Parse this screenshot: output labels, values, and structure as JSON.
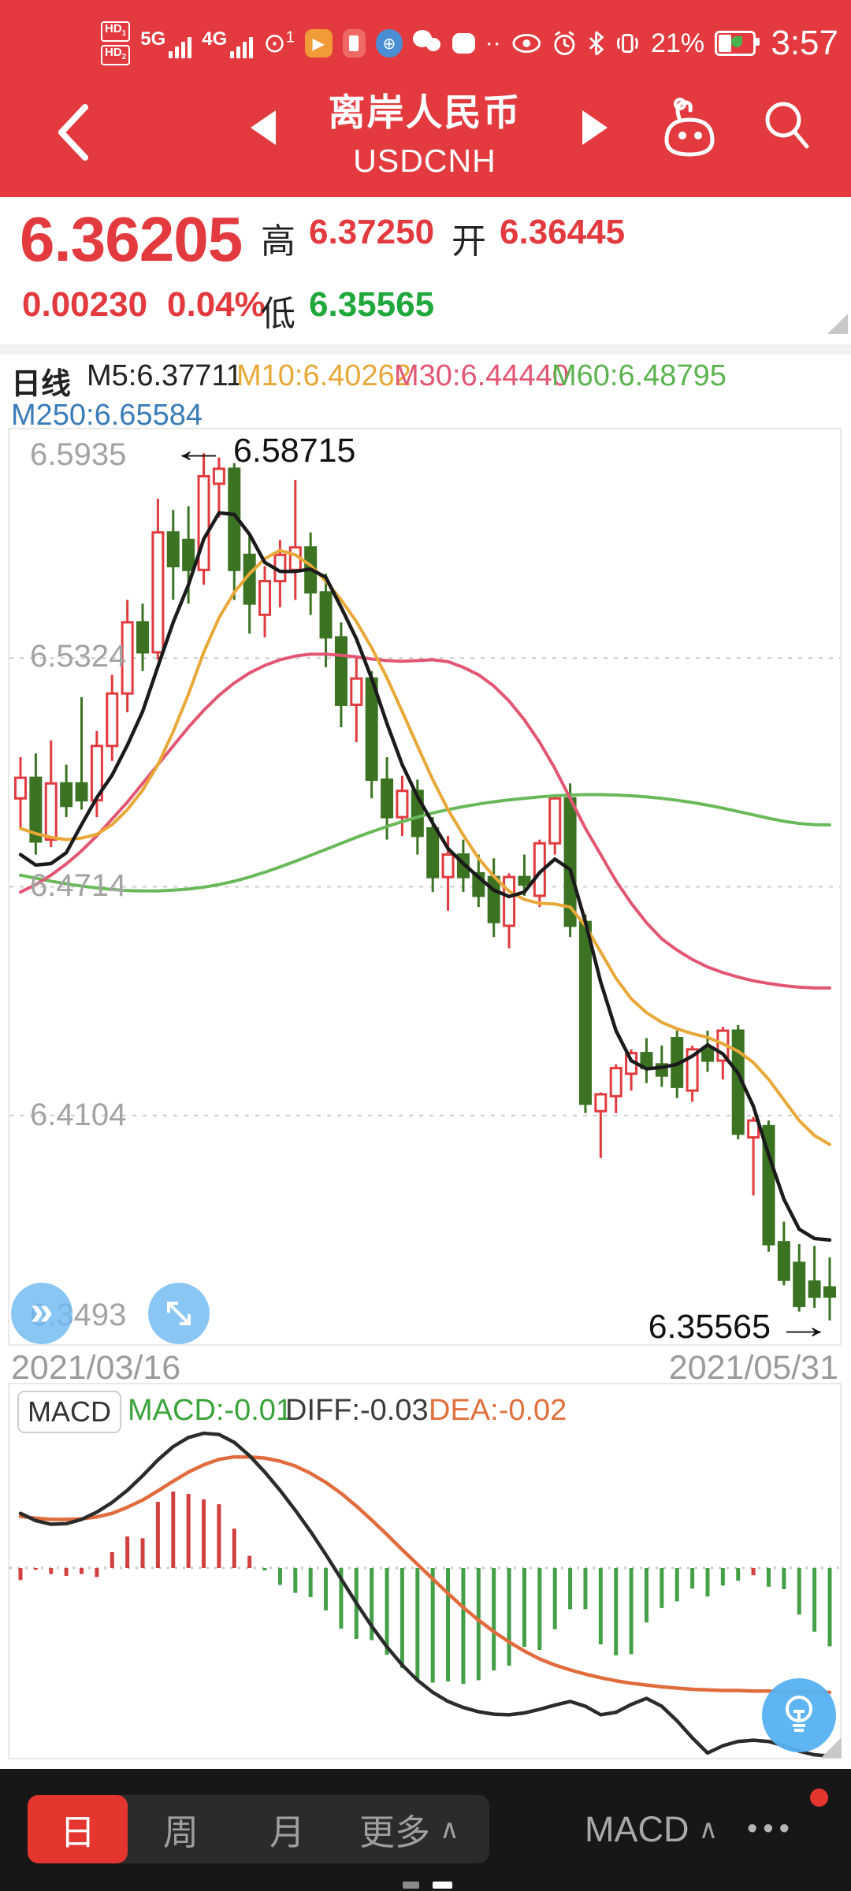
{
  "status_bar": {
    "hd": "HD",
    "hd1_num": "1",
    "hd2_num": "2",
    "sig1": "5G",
    "sig2": "4G",
    "hotspot_count": "1",
    "dots": "··",
    "battery_pct": "21%",
    "time": "3:57",
    "play_glyph": "▶",
    "globe_glyph": "⊕"
  },
  "header": {
    "title": "离岸人民币",
    "subtitle": "USDCNH"
  },
  "quote": {
    "last": "6.36205",
    "change": "0.00230",
    "change_pct": "0.04%",
    "high_label": "高",
    "high": "6.37250",
    "open_label": "开",
    "open": "6.36445",
    "low_label": "低",
    "low": "6.35565"
  },
  "indicator_bar": {
    "period": "日线",
    "m5": "M5:6.37711",
    "m10": "M10:6.40262",
    "m30": "M30:6.44440",
    "m60": "M60:6.48795",
    "m250": "M250:6.65584"
  },
  "annotations": {
    "high_marker": "6.58715",
    "low_marker": "6.35565",
    "left_arrow": "←",
    "right_arrow": "→",
    "fast_forward": "»"
  },
  "x_axis": {
    "start": "2021/03/16",
    "end": "2021/05/31"
  },
  "macd_panel": {
    "button": "MACD",
    "macd_label": "MACD:-0.01",
    "diff_label": "DIFF:-0.03",
    "dea_label": "DEA:-0.02"
  },
  "bottom_bar": {
    "tab_day": "日",
    "tab_week": "周",
    "tab_month": "月",
    "tab_more": "更多",
    "chevron": "∧",
    "indicator_tab": "MACD",
    "more_dots": "•••"
  },
  "colors": {
    "accent_red": "#e23a3e",
    "green_text": "#21a83c",
    "up": "#e23a3e",
    "down": "#3b7323",
    "ma5": "#1b1b1b",
    "ma10": "#e8a838",
    "ma30": "#e25673",
    "ma60": "#69b95a",
    "diff": "#2b2b2b",
    "dea": "#e06c3e",
    "hist_up": "#d23f3f",
    "hist_down": "#43a047",
    "grid": "#cccccc",
    "blue_button": "#70baf1"
  },
  "chart_data": {
    "type": "candlestick",
    "title": "USDCNH daily candles with MA5/MA10/MA30/MA60 and MACD",
    "x_range": [
      "2021/03/16",
      "2021/05/31"
    ],
    "y_max": 6.5935,
    "y_min": 6.3493,
    "y_labels": [
      "6.5935",
      "6.5324",
      "6.4714",
      "6.4104",
      "6.3493"
    ],
    "candles": [
      [
        6.495,
        6.506,
        6.487,
        6.5005
      ],
      [
        6.5005,
        6.507,
        6.48,
        6.4835
      ],
      [
        6.484,
        6.5105,
        6.482,
        6.499
      ],
      [
        6.499,
        6.504,
        6.49,
        6.493
      ],
      [
        6.499,
        6.522,
        6.492,
        6.4945
      ],
      [
        6.4945,
        6.513,
        6.49,
        6.509
      ],
      [
        6.509,
        6.528,
        6.505,
        6.523
      ],
      [
        6.523,
        6.548,
        6.518,
        6.542
      ],
      [
        6.542,
        6.547,
        6.529,
        6.534
      ],
      [
        6.534,
        6.575,
        6.532,
        6.566
      ],
      [
        6.566,
        6.572,
        6.548,
        6.557
      ],
      [
        6.564,
        6.573,
        6.547,
        6.556
      ],
      [
        6.556,
        6.58715,
        6.552,
        6.581
      ],
      [
        6.579,
        6.586,
        6.57,
        6.583
      ],
      [
        6.583,
        6.5845,
        6.548,
        6.556
      ],
      [
        6.56,
        6.565,
        6.539,
        6.547
      ],
      [
        6.544,
        6.557,
        6.538,
        6.553
      ],
      [
        6.553,
        6.564,
        6.546,
        6.56
      ],
      [
        6.556,
        6.58,
        6.548,
        6.562
      ],
      [
        6.562,
        6.566,
        6.544,
        6.55
      ],
      [
        6.55,
        6.555,
        6.53,
        6.538
      ],
      [
        6.538,
        6.542,
        6.514,
        6.52
      ],
      [
        6.52,
        6.533,
        6.51,
        6.527
      ],
      [
        6.527,
        6.529,
        6.495,
        6.5
      ],
      [
        6.5,
        6.506,
        6.484,
        6.49
      ],
      [
        6.49,
        6.501,
        6.485,
        6.497
      ],
      [
        6.497,
        6.5,
        6.48,
        6.485
      ],
      [
        6.487,
        6.49,
        6.47,
        6.474
      ],
      [
        6.474,
        6.485,
        6.465,
        6.48
      ],
      [
        6.48,
        6.484,
        6.47,
        6.474
      ],
      [
        6.475,
        6.48,
        6.466,
        6.469
      ],
      [
        6.474,
        6.479,
        6.458,
        6.462
      ],
      [
        6.461,
        6.475,
        6.455,
        6.474
      ],
      [
        6.474,
        6.48,
        6.469,
        6.472
      ],
      [
        6.469,
        6.484,
        6.466,
        6.483
      ],
      [
        6.483,
        6.496,
        6.48,
        6.495
      ],
      [
        6.495,
        6.499,
        6.458,
        6.461
      ],
      [
        6.462,
        6.464,
        6.411,
        6.4135
      ],
      [
        6.4115,
        6.4165,
        6.399,
        6.416
      ],
      [
        6.4155,
        6.424,
        6.411,
        6.423
      ],
      [
        6.4215,
        6.428,
        6.417,
        6.427
      ],
      [
        6.427,
        6.431,
        6.419,
        6.423
      ],
      [
        6.424,
        6.429,
        6.418,
        6.421
      ],
      [
        6.431,
        6.433,
        6.415,
        6.418
      ],
      [
        6.417,
        6.429,
        6.414,
        6.428
      ],
      [
        6.428,
        6.433,
        6.422,
        6.425
      ],
      [
        6.425,
        6.434,
        6.42,
        6.433
      ],
      [
        6.433,
        6.4345,
        6.404,
        6.4055
      ],
      [
        6.4045,
        6.41,
        6.389,
        6.409
      ],
      [
        6.4075,
        6.409,
        6.374,
        6.376
      ],
      [
        6.3765,
        6.382,
        6.365,
        6.3665
      ],
      [
        6.371,
        6.376,
        6.358,
        6.3595
      ],
      [
        6.366,
        6.3755,
        6.359,
        6.362
      ],
      [
        6.36445,
        6.3725,
        6.35565,
        6.36205
      ]
    ],
    "ma5": [
      6.48,
      6.4772,
      6.4776,
      6.4805,
      6.488,
      6.4952,
      6.5012,
      6.5092,
      6.5182,
      6.5302,
      6.542,
      6.552,
      6.5642,
      6.5712,
      6.5708,
      6.5655,
      6.558,
      6.5556,
      6.5556,
      6.5562,
      6.554,
      6.546,
      6.5376,
      6.527,
      6.515,
      6.504,
      6.4955,
      6.4884,
      6.4816,
      6.4776,
      6.474,
      6.4705,
      6.4688,
      6.47,
      6.4752,
      6.4788,
      6.476,
      6.462,
      6.446,
      6.433,
      6.425,
      6.4228,
      6.4232,
      6.424,
      6.4262,
      6.4292,
      6.4268,
      6.4216,
      6.4128,
      6.3998,
      6.388,
      6.38,
      6.3775,
      6.37711
    ],
    "ma10": [
      6.487,
      6.4856,
      6.4846,
      6.484,
      6.4844,
      6.4854,
      6.488,
      6.492,
      6.4972,
      6.504,
      6.5128,
      6.5228,
      6.534,
      6.5432,
      6.55,
      6.555,
      6.559,
      6.5612,
      6.56,
      6.5572,
      6.553,
      6.548,
      6.5422,
      6.5352,
      6.5272,
      6.5182,
      6.509,
      6.5,
      6.492,
      6.4852,
      6.479,
      6.4742,
      6.4702,
      6.468,
      6.467,
      6.4668,
      6.466,
      6.461,
      6.454,
      6.447,
      6.4415,
      6.4378,
      6.4352,
      6.4335,
      6.4322,
      6.4312,
      6.4295,
      6.4275,
      6.4245,
      6.42,
      6.4145,
      6.409,
      6.405,
      6.40262
    ],
    "ma30": [
      6.47,
      6.472,
      6.4745,
      6.4775,
      6.481,
      6.485,
      6.4895,
      6.494,
      6.499,
      6.504,
      6.509,
      6.514,
      6.5185,
      6.5225,
      6.5258,
      6.5285,
      6.5305,
      6.532,
      6.533,
      6.5335,
      6.5335,
      6.5332,
      6.5328,
      6.5322,
      6.5318,
      6.5316,
      6.5318,
      6.532,
      6.5315,
      6.53,
      6.528,
      6.525,
      6.521,
      6.516,
      6.51,
      6.503,
      6.495,
      6.487,
      6.48,
      6.473,
      6.467,
      6.4618,
      6.4575,
      6.4545,
      6.452,
      6.45,
      6.4485,
      6.4473,
      6.4463,
      6.4456,
      6.445,
      6.4446,
      6.4444,
      6.4444
    ],
    "ma60": [
      6.4745,
      6.4737,
      6.4729,
      6.4722,
      6.4716,
      6.4711,
      6.4707,
      6.4704,
      6.4703,
      6.4703,
      6.4705,
      6.4708,
      6.4713,
      6.472,
      6.4729,
      6.474,
      6.4753,
      6.4767,
      6.4782,
      6.4798,
      6.4814,
      6.483,
      6.4846,
      6.4861,
      6.4875,
      6.4888,
      6.49,
      6.4911,
      6.492,
      6.4928,
      6.4935,
      6.4941,
      6.4946,
      6.495,
      6.4954,
      6.4957,
      6.4959,
      6.496,
      6.496,
      6.4959,
      6.4957,
      6.4954,
      6.495,
      6.4945,
      6.4939,
      6.4932,
      6.4924,
      6.4915,
      6.4906,
      6.4897,
      6.4889,
      6.4883,
      6.488,
      6.48795
    ],
    "macd": {
      "diff": [
        0.009,
        0.0078,
        0.0072,
        0.0073,
        0.008,
        0.0092,
        0.0108,
        0.0128,
        0.0152,
        0.0178,
        0.02,
        0.0215,
        0.0222,
        0.022,
        0.0207,
        0.0185,
        0.0158,
        0.0128,
        0.0095,
        0.006,
        0.0022,
        -0.0018,
        -0.0058,
        -0.0096,
        -0.013,
        -0.016,
        -0.0185,
        -0.0205,
        -0.022,
        -0.023,
        -0.0237,
        -0.0241,
        -0.0242,
        -0.0239,
        -0.0233,
        -0.0226,
        -0.022,
        -0.0228,
        -0.0242,
        -0.0238,
        -0.0225,
        -0.0215,
        -0.0228,
        -0.0252,
        -0.028,
        -0.0305,
        -0.0293,
        -0.0286,
        -0.0284,
        -0.0286,
        -0.0293,
        -0.0302,
        -0.0308,
        -0.031
      ],
      "dea": [
        0.0085,
        0.0082,
        0.008,
        0.008,
        0.0081,
        0.0084,
        0.009,
        0.01,
        0.0112,
        0.0127,
        0.0143,
        0.0158,
        0.017,
        0.0179,
        0.0183,
        0.0183,
        0.0181,
        0.0176,
        0.0168,
        0.0156,
        0.0141,
        0.0123,
        0.0102,
        0.0079,
        0.0055,
        0.003,
        0.0006,
        -0.0018,
        -0.0042,
        -0.0065,
        -0.0086,
        -0.0105,
        -0.0122,
        -0.0137,
        -0.015,
        -0.016,
        -0.0168,
        -0.0175,
        -0.0181,
        -0.0186,
        -0.019,
        -0.0193,
        -0.0196,
        -0.0198,
        -0.02,
        -0.0201,
        -0.0202,
        -0.0202,
        -0.0203,
        -0.0203,
        -0.0204,
        -0.0204,
        -0.0205,
        -0.0205
      ],
      "hist": [
        -0.002,
        -0.0003,
        -0.001,
        -0.0013,
        -0.001,
        -0.0015,
        0.0026,
        0.0052,
        0.0049,
        0.0109,
        0.0126,
        0.0122,
        0.0113,
        0.0105,
        0.0065,
        0.002,
        -0.0004,
        -0.0028,
        -0.0041,
        -0.0048,
        -0.007,
        -0.01,
        -0.0117,
        -0.0119,
        -0.0143,
        -0.0165,
        -0.0187,
        -0.0189,
        -0.0187,
        -0.0191,
        -0.0185,
        -0.0169,
        -0.0161,
        -0.013,
        -0.0135,
        -0.0101,
        -0.0068,
        -0.0068,
        -0.0126,
        -0.0144,
        -0.0142,
        -0.009,
        -0.0066,
        -0.0055,
        -0.0034,
        -0.0047,
        -0.0029,
        -0.0021,
        -0.0012,
        -0.0031,
        -0.0035,
        -0.0077,
        -0.0105,
        -0.0129
      ],
      "hist_colors": [
        "r",
        "r",
        "r",
        "r",
        "r",
        "r",
        "r",
        "r",
        "r",
        "r",
        "r",
        "r",
        "r",
        "r",
        "r",
        "r",
        "g",
        "g",
        "g",
        "g",
        "g",
        "g",
        "g",
        "g",
        "g",
        "g",
        "g",
        "g",
        "g",
        "g",
        "g",
        "g",
        "g",
        "g",
        "g",
        "g",
        "g",
        "g",
        "g",
        "g",
        "g",
        "g",
        "g",
        "g",
        "g",
        "g",
        "g",
        "g",
        "r",
        "g",
        "g",
        "g",
        "g",
        "g"
      ]
    }
  }
}
